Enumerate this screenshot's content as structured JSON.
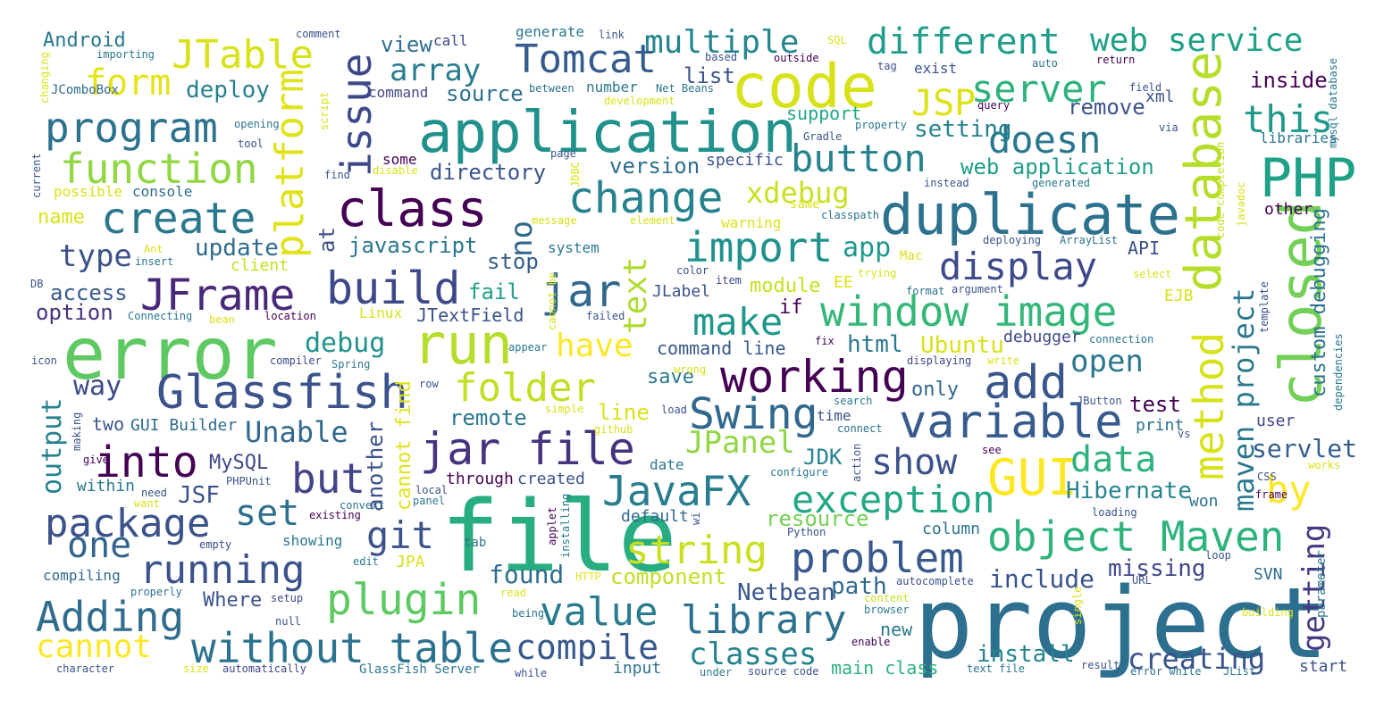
{
  "words": [
    {
      "text": "project",
      "color": "#2c6f8e"
    },
    {
      "text": "file",
      "color": "#27ad81"
    },
    {
      "text": "error",
      "color": "#5ec962"
    },
    {
      "text": "application",
      "color": "#21918c"
    },
    {
      "text": "code",
      "color": "#d8e219"
    },
    {
      "text": "duplicate",
      "color": "#2c728e"
    },
    {
      "text": "closed",
      "color": "#73d056"
    },
    {
      "text": "database",
      "color": "#b5de2b"
    },
    {
      "text": "PHP",
      "color": "#1fa187"
    },
    {
      "text": "class",
      "color": "#440154"
    },
    {
      "text": "Glassfish",
      "color": "#3b528b"
    },
    {
      "text": "run",
      "color": "#b5de2b"
    },
    {
      "text": "working",
      "color": "#440154"
    },
    {
      "text": "window image",
      "color": "#35b779"
    },
    {
      "text": "add",
      "color": "#39568c"
    },
    {
      "text": "variable",
      "color": "#365c8d"
    },
    {
      "text": "JFrame",
      "color": "#482878"
    },
    {
      "text": "build",
      "color": "#3e4989"
    },
    {
      "text": "jar",
      "color": "#31688e"
    },
    {
      "text": "create",
      "color": "#2a788e"
    },
    {
      "text": "change",
      "color": "#26828e"
    },
    {
      "text": "GUI",
      "color": "#fde725"
    },
    {
      "text": "method",
      "color": "#d8e219"
    },
    {
      "text": "issue",
      "color": "#3e4989"
    },
    {
      "text": "platform",
      "color": "#dfe318"
    },
    {
      "text": "jar file",
      "color": "#46337e"
    },
    {
      "text": "Swing",
      "color": "#31688e"
    },
    {
      "text": "program",
      "color": "#2c728e"
    },
    {
      "text": "function",
      "color": "#90d743"
    },
    {
      "text": "import",
      "color": "#21918c"
    },
    {
      "text": "into",
      "color": "#440154"
    },
    {
      "text": "but",
      "color": "#414487"
    },
    {
      "text": "package",
      "color": "#3b528b"
    },
    {
      "text": "JavaFX",
      "color": "#287d8e"
    },
    {
      "text": "folder",
      "color": "#c2df23"
    },
    {
      "text": "string",
      "color": "#c8e020"
    },
    {
      "text": "object Maven",
      "color": "#2eb37c"
    },
    {
      "text": "exception",
      "color": "#22a884"
    },
    {
      "text": "library",
      "color": "#2c728e"
    },
    {
      "text": "plugin",
      "color": "#5ec962"
    },
    {
      "text": "running",
      "color": "#3b528b"
    },
    {
      "text": "Adding",
      "color": "#2f6c8e"
    },
    {
      "text": "without table",
      "color": "#2c728e"
    },
    {
      "text": "value",
      "color": "#287c8e"
    },
    {
      "text": "compile",
      "color": "#38588c"
    },
    {
      "text": "problem",
      "color": "#38598c"
    },
    {
      "text": "display",
      "color": "#3e4a89"
    },
    {
      "text": "make",
      "color": "#1f988b"
    },
    {
      "text": "server",
      "color": "#2db27d"
    },
    {
      "text": "doesn",
      "color": "#2a788e"
    },
    {
      "text": "button",
      "color": "#26828e"
    },
    {
      "text": "different",
      "color": "#1f9e89"
    },
    {
      "text": "web service",
      "color": "#1fa187"
    },
    {
      "text": "multiple",
      "color": "#24868e"
    },
    {
      "text": "Tomcat",
      "color": "#365c8d"
    },
    {
      "text": "JTable",
      "color": "#d8e219"
    },
    {
      "text": "form",
      "color": "#e5e419"
    },
    {
      "text": "array",
      "color": "#287d8e"
    },
    {
      "text": "this",
      "color": "#1f9a8a"
    },
    {
      "text": "JSP",
      "color": "#dde318"
    },
    {
      "text": "maven project",
      "color": "#2a788e"
    },
    {
      "text": "getting",
      "color": "#443a83"
    },
    {
      "text": "by",
      "color": "#fde725"
    },
    {
      "text": "data",
      "color": "#2db27d"
    },
    {
      "text": "show",
      "color": "#3b528b"
    },
    {
      "text": "set",
      "color": "#2d708e"
    },
    {
      "text": "one",
      "color": "#32648e"
    },
    {
      "text": "cannot",
      "color": "#fde725"
    },
    {
      "text": "classes",
      "color": "#26828e"
    },
    {
      "text": "creating",
      "color": "#3b528b"
    },
    {
      "text": "text",
      "color": "#addc30"
    },
    {
      "text": "xdebug",
      "color": "#c8e020"
    },
    {
      "text": "have",
      "color": "#fde725"
    },
    {
      "text": "open",
      "color": "#2a788e"
    },
    {
      "text": "JPanel",
      "color": "#90d743"
    },
    {
      "text": "Unable",
      "color": "#31688e"
    },
    {
      "text": "git",
      "color": "#3b528b"
    },
    {
      "text": "no",
      "color": "#31688e"
    },
    {
      "text": "way",
      "color": "#3e4989"
    },
    {
      "text": "output",
      "color": "#26828e"
    },
    {
      "text": "Hibernate",
      "color": "#25858e"
    },
    {
      "text": "servlet",
      "color": "#355f8d"
    },
    {
      "text": "custom debugging",
      "color": "#2c728e"
    },
    {
      "text": "app",
      "color": "#1f988b"
    },
    {
      "text": "debug",
      "color": "#21918c"
    },
    {
      "text": "Netbean",
      "color": "#39568c"
    },
    {
      "text": "path",
      "color": "#30698e"
    },
    {
      "text": "include",
      "color": "#3a548c"
    },
    {
      "text": "install",
      "color": "#25848e"
    },
    {
      "text": "found",
      "color": "#2e6d8e"
    },
    {
      "text": "component",
      "color": "#c2df23"
    },
    {
      "text": "missing",
      "color": "#3f4788"
    },
    {
      "text": "resource",
      "color": "#75d054"
    },
    {
      "text": "web application",
      "color": "#1f9e89"
    },
    {
      "text": "setting",
      "color": "#26818e"
    },
    {
      "text": "version",
      "color": "#2e6f8e"
    },
    {
      "text": "directory",
      "color": "#39558c"
    },
    {
      "text": "javascript",
      "color": "#2a788e"
    },
    {
      "text": "update",
      "color": "#2f6b8e"
    },
    {
      "text": "type",
      "color": "#3b528b"
    },
    {
      "text": "access",
      "color": "#38598c"
    },
    {
      "text": "option",
      "color": "#46327e"
    },
    {
      "text": "deploy",
      "color": "#26818e"
    },
    {
      "text": "view",
      "color": "#2e6f8e"
    },
    {
      "text": "source",
      "color": "#2d718e"
    },
    {
      "text": "list",
      "color": "#3b528b"
    },
    {
      "text": "fail",
      "color": "#1fa187"
    },
    {
      "text": "Ubuntu",
      "color": "#d8e219"
    },
    {
      "text": "html",
      "color": "#2a788e"
    },
    {
      "text": "stop",
      "color": "#365c8d"
    },
    {
      "text": "module",
      "color": "#c8e020"
    },
    {
      "text": "remote",
      "color": "#2a788e"
    },
    {
      "text": "cannot find",
      "color": "#dfe318"
    },
    {
      "text": "another",
      "color": "#3b528b"
    },
    {
      "text": "JDK",
      "color": "#25838e"
    },
    {
      "text": "MySQL",
      "color": "#3e4989"
    },
    {
      "text": "JSF",
      "color": "#3b528b"
    },
    {
      "text": "test",
      "color": "#440154"
    },
    {
      "text": "line",
      "color": "#d8e219"
    },
    {
      "text": "save",
      "color": "#2a788e"
    },
    {
      "text": "only",
      "color": "#31688e"
    },
    {
      "text": "inside",
      "color": "#440154"
    },
    {
      "text": "remove",
      "color": "#3b528b"
    },
    {
      "text": "support",
      "color": "#22a884"
    },
    {
      "text": "Android",
      "color": "#2a788e"
    },
    {
      "text": "if",
      "color": "#440154"
    },
    {
      "text": "at",
      "color": "#3b528b"
    },
    {
      "text": "name",
      "color": "#d8e219"
    },
    {
      "text": "client",
      "color": "#c8e020"
    },
    {
      "text": "main class",
      "color": "#2db27d"
    },
    {
      "text": "command line",
      "color": "#38588c"
    },
    {
      "text": "JTextField",
      "color": "#3b528b"
    },
    {
      "text": "debugger",
      "color": "#3e4989"
    },
    {
      "text": "two",
      "color": "#3b528b"
    },
    {
      "text": "GUI Builder",
      "color": "#2f6c8e"
    },
    {
      "text": "within",
      "color": "#2a788e"
    },
    {
      "text": "JLabel",
      "color": "#3b528b"
    },
    {
      "text": "API",
      "color": "#3b528b"
    },
    {
      "text": "default",
      "color": "#31688e"
    },
    {
      "text": "column",
      "color": "#2c728e"
    },
    {
      "text": "through",
      "color": "#440154"
    },
    {
      "text": "created",
      "color": "#3b528b"
    },
    {
      "text": "date",
      "color": "#2a788e"
    },
    {
      "text": "print",
      "color": "#2c728e"
    },
    {
      "text": "input",
      "color": "#2c728e"
    },
    {
      "text": "start",
      "color": "#3b528b"
    },
    {
      "text": "user",
      "color": "#3e4989"
    },
    {
      "text": "JPA",
      "color": "#d8e219"
    },
    {
      "text": "other",
      "color": "#440154"
    },
    {
      "text": "specific",
      "color": "#3b528b"
    },
    {
      "text": "number",
      "color": "#2a788e"
    },
    {
      "text": "exist",
      "color": "#3b528b"
    },
    {
      "text": "won",
      "color": "#2c728e"
    },
    {
      "text": "Where",
      "color": "#3b528b"
    },
    {
      "text": "EJB",
      "color": "#d8e219"
    },
    {
      "text": "SVN",
      "color": "#2f6c8e"
    },
    {
      "text": "Linux",
      "color": "#d8e219"
    },
    {
      "text": "libraries",
      "color": "#2a788e"
    },
    {
      "text": "EE",
      "color": "#dfe318"
    },
    {
      "text": "new",
      "color": "#2a788e"
    },
    {
      "text": "console",
      "color": "#2f6c8e"
    },
    {
      "text": "possible",
      "color": "#d8e219"
    },
    {
      "text": "JComboBox",
      "color": "#31688e"
    },
    {
      "text": "call",
      "color": "#3e4989"
    },
    {
      "text": "generate",
      "color": "#2a788e"
    },
    {
      "text": "xml",
      "color": "#3b528b"
    },
    {
      "text": "some",
      "color": "#440154"
    },
    {
      "text": "showing",
      "color": "#2a788e"
    },
    {
      "text": "compiling",
      "color": "#31688e"
    },
    {
      "text": "character",
      "color": "#3b528b"
    },
    {
      "text": "automatically",
      "color": "#3e4989"
    },
    {
      "text": "GlassFish Server",
      "color": "#2a788e"
    },
    {
      "text": "source code",
      "color": "#3b528b"
    },
    {
      "text": "text file",
      "color": "#2a788e"
    },
    {
      "text": "result",
      "color": "#3b528b"
    },
    {
      "text": "error while",
      "color": "#2c728e"
    },
    {
      "text": "JList",
      "color": "#2a788e"
    },
    {
      "text": "Mac",
      "color": "#d8e219"
    },
    {
      "text": "PHPUnit",
      "color": "#3b528b"
    },
    {
      "text": "Python",
      "color": "#3b528b"
    },
    {
      "text": "edit",
      "color": "#2a788e"
    },
    {
      "text": "empty",
      "color": "#3e4989"
    },
    {
      "text": "existing",
      "color": "#440154"
    },
    {
      "text": "convert",
      "color": "#2c728e"
    },
    {
      "text": "local",
      "color": "#3b528b"
    },
    {
      "text": "panel",
      "color": "#2a788e"
    },
    {
      "text": "tab",
      "color": "#2c728e"
    },
    {
      "text": "applet",
      "color": "#440154"
    },
    {
      "text": "installing",
      "color": "#2a788e"
    },
    {
      "text": "HTTP",
      "color": "#dfe318"
    },
    {
      "text": "read",
      "color": "#d8e219"
    },
    {
      "text": "being",
      "color": "#2c728e"
    },
    {
      "text": "setup",
      "color": "#3e4989"
    },
    {
      "text": "null",
      "color": "#3b528b"
    },
    {
      "text": "properly",
      "color": "#2c728e"
    },
    {
      "text": "size",
      "color": "#d8e219"
    },
    {
      "text": "while",
      "color": "#3b528b"
    },
    {
      "text": "under",
      "color": "#2a788e"
    },
    {
      "text": "content",
      "color": "#c8e020"
    },
    {
      "text": "browser",
      "color": "#2a788e"
    },
    {
      "text": "enable",
      "color": "#440154"
    },
    {
      "text": "autocomplete",
      "color": "#3b528b"
    },
    {
      "text": "single",
      "color": "#d8e219"
    },
    {
      "text": "URL",
      "color": "#3b528b"
    },
    {
      "text": "building",
      "color": "#d8e219"
    },
    {
      "text": "parameter",
      "color": "#2a788e"
    },
    {
      "text": "loop",
      "color": "#3b528b"
    },
    {
      "text": "loading",
      "color": "#3b528b"
    },
    {
      "text": "frame",
      "color": "#440154"
    },
    {
      "text": "CSS",
      "color": "#3b528b"
    },
    {
      "text": "works",
      "color": "#d8e219"
    },
    {
      "text": "vs",
      "color": "#3b528b"
    },
    {
      "text": "see",
      "color": "#440154"
    },
    {
      "text": "configure",
      "color": "#2a788e"
    },
    {
      "text": "action",
      "color": "#3b528b"
    },
    {
      "text": "connect",
      "color": "#2c728e"
    },
    {
      "text": "time",
      "color": "#3b528b"
    },
    {
      "text": "search",
      "color": "#2a788e"
    },
    {
      "text": "JButton",
      "color": "#3b528b"
    },
    {
      "text": "displaying",
      "color": "#3e4989"
    },
    {
      "text": "write",
      "color": "#d8e219"
    },
    {
      "text": "connection",
      "color": "#2a788e"
    },
    {
      "text": "fix",
      "color": "#440154"
    },
    {
      "text": "wrong",
      "color": "#d8e219"
    },
    {
      "text": "compiler",
      "color": "#3e4989"
    },
    {
      "text": "Spring",
      "color": "#2a788e"
    },
    {
      "text": "row",
      "color": "#3b528b"
    },
    {
      "text": "icon",
      "color": "#3b528b"
    },
    {
      "text": "simple",
      "color": "#d8e219"
    },
    {
      "text": "load",
      "color": "#3b528b"
    },
    {
      "text": "github",
      "color": "#d8e219"
    },
    {
      "text": "making",
      "color": "#3b528b"
    },
    {
      "text": "give",
      "color": "#440154"
    },
    {
      "text": "need",
      "color": "#3b528b"
    },
    {
      "text": "want",
      "color": "#d8e219"
    },
    {
      "text": "DB",
      "color": "#3b528b"
    },
    {
      "text": "Connecting",
      "color": "#2a788e"
    },
    {
      "text": "bean",
      "color": "#d8e219"
    },
    {
      "text": "location",
      "color": "#440154"
    },
    {
      "text": "failed",
      "color": "#3b528b"
    },
    {
      "text": "cannot be",
      "color": "#d8e219"
    },
    {
      "text": "appear",
      "color": "#2a788e"
    },
    {
      "text": "color",
      "color": "#3b528b"
    },
    {
      "text": "item",
      "color": "#3e4989"
    },
    {
      "text": "format",
      "color": "#2c728e"
    },
    {
      "text": "argument",
      "color": "#3b528b"
    },
    {
      "text": "select",
      "color": "#d8e219"
    },
    {
      "text": "template",
      "color": "#3b528b"
    },
    {
      "text": "dependencies",
      "color": "#2a788e"
    },
    {
      "text": "trying",
      "color": "#d8e219"
    },
    {
      "text": "deploying",
      "color": "#3b528b"
    },
    {
      "text": "ArrayList",
      "color": "#2c728e"
    },
    {
      "text": "javadoc",
      "color": "#d8e219"
    },
    {
      "text": "code completion",
      "color": "#c8e020"
    },
    {
      "text": "mysql database",
      "color": "#2a788e"
    },
    {
      "text": "via",
      "color": "#3b528b"
    },
    {
      "text": "field",
      "color": "#3b528b"
    },
    {
      "text": "return",
      "color": "#440154"
    },
    {
      "text": "auto",
      "color": "#2c728e"
    },
    {
      "text": "tag",
      "color": "#3b528b"
    },
    {
      "text": "query",
      "color": "#440154"
    },
    {
      "text": "SQL",
      "color": "#d8e219"
    },
    {
      "text": "outside",
      "color": "#440154"
    },
    {
      "text": "based",
      "color": "#3b528b"
    },
    {
      "text": "link",
      "color": "#3b528b"
    },
    {
      "text": "Net Beans",
      "color": "#2a788e"
    },
    {
      "text": "development",
      "color": "#d8e219"
    },
    {
      "text": "between",
      "color": "#2c728e"
    },
    {
      "text": "command",
      "color": "#3e4989"
    },
    {
      "text": "property",
      "color": "#2a788e"
    },
    {
      "text": "Gradle",
      "color": "#3b528b"
    },
    {
      "text": "instead",
      "color": "#3b528b"
    },
    {
      "text": "generated",
      "color": "#2a788e"
    },
    {
      "text": "same",
      "color": "#d8e219"
    },
    {
      "text": "classpath",
      "color": "#2c728e"
    },
    {
      "text": "warning",
      "color": "#d8e219"
    },
    {
      "text": "system",
      "color": "#2a788e"
    },
    {
      "text": "element",
      "color": "#d8e219"
    },
    {
      "text": "message",
      "color": "#d8e219"
    },
    {
      "text": "JDBC",
      "color": "#d8e219"
    },
    {
      "text": "page",
      "color": "#3b528b"
    },
    {
      "text": "find",
      "color": "#3b528b"
    },
    {
      "text": "disable",
      "color": "#d8e219"
    },
    {
      "text": "script",
      "color": "#d8e219"
    },
    {
      "text": "opening",
      "color": "#2c728e"
    },
    {
      "text": "tool",
      "color": "#3b528b"
    },
    {
      "text": "current",
      "color": "#3b528b"
    },
    {
      "text": "changing",
      "color": "#d8e219"
    },
    {
      "text": "importing",
      "color": "#2a788e"
    },
    {
      "text": "comment",
      "color": "#3b528b"
    },
    {
      "text": "insert",
      "color": "#2a788e"
    },
    {
      "text": "Ant",
      "color": "#d8e219"
    },
    {
      "text": "wi",
      "color": "#3b528b"
    }
  ]
}
